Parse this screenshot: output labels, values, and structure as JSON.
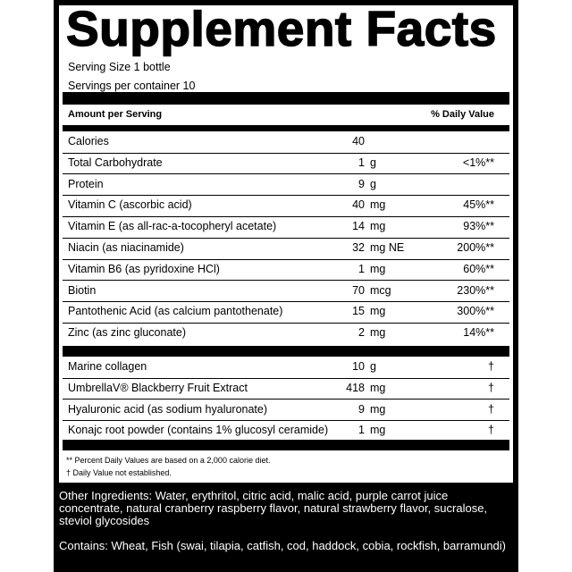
{
  "title": "Supplement Facts",
  "serving_size": "Serving Size 1 bottle",
  "servings_per_container": "Servings per container 10",
  "header": {
    "amount": "Amount per Serving",
    "dv": "% Daily Value"
  },
  "nutrients": [
    {
      "name": "Calories",
      "qty": "40",
      "unit": "",
      "dv": ""
    },
    {
      "name": "Total Carbohydrate",
      "qty": "1",
      "unit": "g",
      "dv": "<1%**"
    },
    {
      "name": "Protein",
      "qty": "9",
      "unit": "g",
      "dv": ""
    },
    {
      "name": "Vitamin C (ascorbic acid)",
      "qty": "40",
      "unit": "mg",
      "dv": "45%**"
    },
    {
      "name": "Vitamin E (as all-rac-a-tocopheryl acetate)",
      "qty": "14",
      "unit": "mg",
      "dv": "93%**"
    },
    {
      "name": "Niacin (as niacinamide)",
      "qty": "32",
      "unit": "mg NE",
      "dv": "200%**"
    },
    {
      "name": "Vitamin B6 (as pyridoxine HCl)",
      "qty": "1",
      "unit": "mg",
      "dv": "60%**"
    },
    {
      "name": "Biotin",
      "qty": "70",
      "unit": "mcg",
      "dv": "230%**"
    },
    {
      "name": "Pantothenic Acid (as calcium pantothenate)",
      "qty": "15",
      "unit": "mg",
      "dv": "300%**"
    },
    {
      "name": "Zinc (as zinc gluconate)",
      "qty": "2",
      "unit": "mg",
      "dv": "14%**"
    }
  ],
  "other": [
    {
      "name": "Marine collagen",
      "qty": "10",
      "unit": "g",
      "dv": "†"
    },
    {
      "name": "UmbrellaV® Blackberry Fruit Extract",
      "qty": "418",
      "unit": "mg",
      "dv": "†"
    },
    {
      "name": "Hyaluronic acid (as sodium hyaluronate)",
      "qty": "9",
      "unit": "mg",
      "dv": "†"
    },
    {
      "name": "Konajc root powder (contains 1% glucosyl ceramide)",
      "qty": "1",
      "unit": "mg",
      "dv": "†"
    }
  ],
  "footnotes": [
    "** Percent Daily Values are based on a 2,000 calorie diet.",
    "† Daily Value not established."
  ],
  "other_ingredients": "Other Ingredients: Water, erythritol, citric acid, malic acid, purple carrot juice concentrate, natural cranberry raspberry flavor, natural strawberry flavor, sucralose, steviol glycosides",
  "contains": "Contains: Wheat, Fish (swai, tilapia, catfish, cod, haddock, cobia, rockfish, barramundi)"
}
